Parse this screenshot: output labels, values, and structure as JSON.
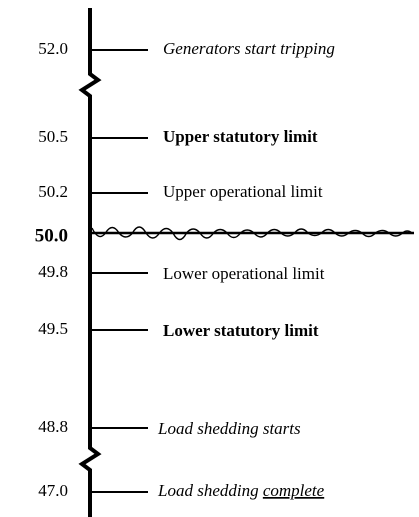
{
  "levels": [
    {
      "label": "52.0",
      "description": "Generators start tripping"
    },
    {
      "label": "50.5",
      "description": "Upper statutory limit"
    },
    {
      "label": "50.2",
      "description": "Upper operational limit"
    },
    {
      "label": "50.0"
    },
    {
      "label": "49.8",
      "description": "Lower operational limit"
    },
    {
      "label": "49.5",
      "description": "Lower statutory limit"
    },
    {
      "label": "48.8",
      "description": "Load shedding starts"
    },
    {
      "label": "47.0",
      "description": "Load shedding",
      "underlined": "complete"
    }
  ]
}
